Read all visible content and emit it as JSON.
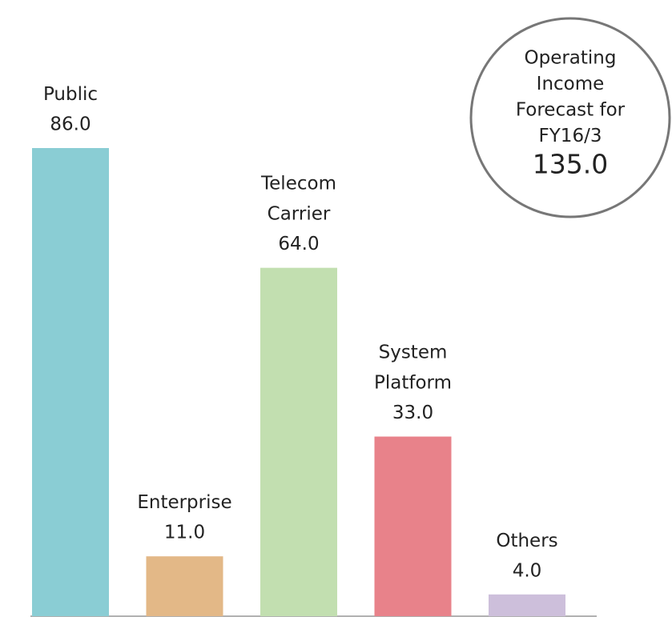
{
  "chart_data": {
    "type": "bar",
    "categories": [
      "Public",
      "Enterprise",
      "Telecom Carrier",
      "System Platform",
      "Others"
    ],
    "values": [
      86,
      11,
      64,
      33,
      4
    ],
    "value_labels": [
      "86.0",
      "11.0",
      "64.0",
      "33.0",
      "4.0"
    ],
    "colors": [
      "#8acdd4",
      "#e3b887",
      "#c2dfb0",
      "#e8828a",
      "#cdbfdb"
    ],
    "annotation": {
      "lines": [
        "Operating",
        "Income",
        "Forecast for",
        "FY16/3"
      ],
      "value": 135,
      "value_label": "135.0"
    }
  }
}
